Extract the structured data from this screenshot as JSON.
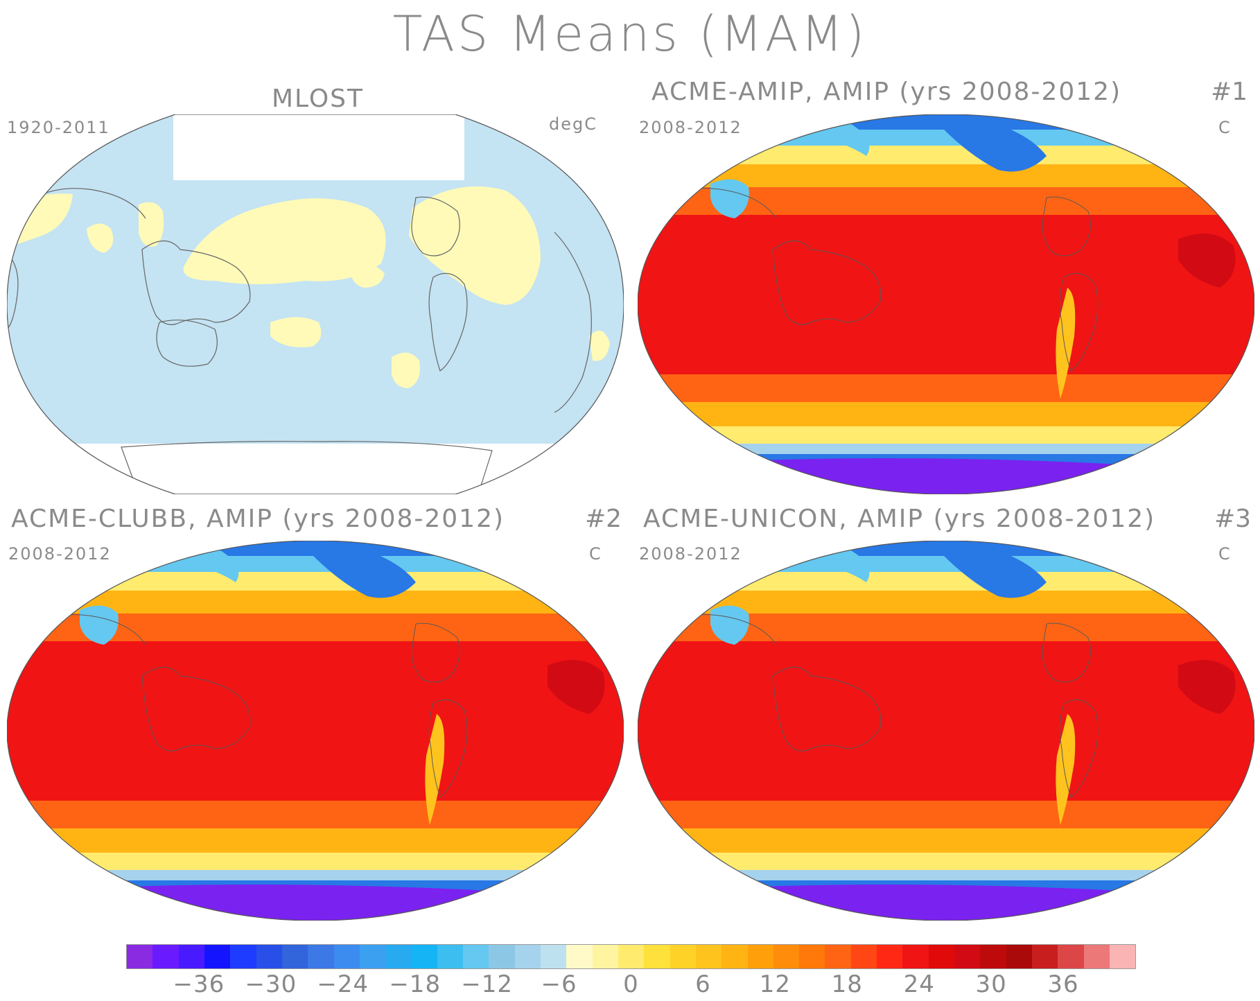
{
  "title": "TAS Means (MAM)",
  "panels": [
    {
      "id": "mlost",
      "title": "MLOST",
      "number": "",
      "left_label": "1920-2011",
      "right_label": "degC"
    },
    {
      "id": "acme-amip",
      "title": "ACME-AMIP, AMIP (yrs 2008-2012)",
      "number": "#1",
      "left_label": "2008-2012",
      "right_label": "C"
    },
    {
      "id": "acme-clubb",
      "title": "ACME-CLUBB, AMIP (yrs 2008-2012)",
      "number": "#2",
      "left_label": "2008-2012",
      "right_label": "C"
    },
    {
      "id": "acme-unicon",
      "title": "ACME-UNICON, AMIP (yrs 2008-2012)",
      "number": "#3",
      "left_label": "2008-2012",
      "right_label": "C"
    }
  ],
  "colorbar": {
    "tick_labels": [
      "−36",
      "−30",
      "−24",
      "−18",
      "−12",
      "−6",
      "0",
      "6",
      "12",
      "18",
      "24",
      "30",
      "36"
    ],
    "tick_values": [
      -36,
      -30,
      -24,
      -18,
      -12,
      -6,
      0,
      6,
      12,
      18,
      24,
      30,
      36
    ],
    "range": [
      -42,
      42
    ],
    "colors": [
      "#8a2be2",
      "#6a1aff",
      "#4a1aff",
      "#1414ff",
      "#1e3cff",
      "#2850e8",
      "#3264dc",
      "#3c78e6",
      "#3c8cf0",
      "#3ca0f0",
      "#28aaf0",
      "#14b4f5",
      "#3cbef0",
      "#64c8f0",
      "#8cc8e6",
      "#a5d2ec",
      "#bee1f0",
      "#fffac8",
      "#fff5a0",
      "#ffeb6e",
      "#ffe13c",
      "#ffd228",
      "#ffc31e",
      "#ffb414",
      "#ffa00a",
      "#ff8c0a",
      "#ff780a",
      "#ff6414",
      "#ff4614",
      "#ff2814",
      "#f01414",
      "#e00a0a",
      "#d20a14",
      "#be0a0a",
      "#aa0a0a",
      "#c81e1e",
      "#dc4646",
      "#ec7878",
      "#fab4b4"
    ]
  },
  "map": {
    "mlost_colors": {
      "near_zero_negative": "#c4e3f3",
      "near_zero_positive": "#fffab8",
      "missing": "#ffffff"
    },
    "model_colors": {
      "tropics": "#f01414",
      "subtropics": "#ff6414",
      "midlat": "#ffb414",
      "cool": "#ffeb6e",
      "cold": "#64c8f0",
      "arctic": "#2878e6",
      "antarctic": "#7a22f0"
    }
  }
}
